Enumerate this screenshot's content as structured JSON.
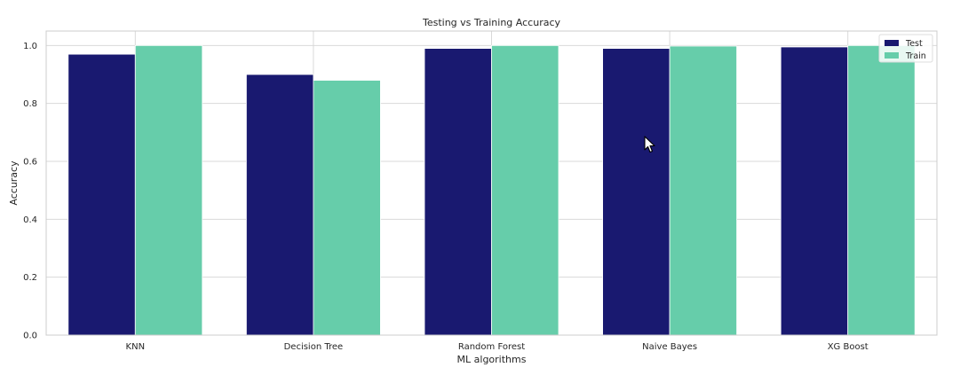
{
  "chart_data": {
    "type": "bar",
    "title": "Testing vs Training Accuracy",
    "xlabel": "ML algorithms",
    "ylabel": "Accuracy",
    "categories": [
      "KNN",
      "Decision Tree",
      "Random Forest",
      "Naive Bayes",
      "XG Boost"
    ],
    "series": [
      {
        "name": "Test",
        "color": "#191970",
        "values": [
          0.97,
          0.9,
          0.99,
          0.99,
          0.995
        ]
      },
      {
        "name": "Train",
        "color": "#66cdaa",
        "values": [
          1.0,
          0.88,
          1.0,
          0.998,
          1.0
        ]
      }
    ],
    "ylim": [
      0,
      1.05
    ],
    "yticks": [
      "0.0",
      "0.2",
      "0.4",
      "0.6",
      "0.8",
      "1.0"
    ],
    "grid": true,
    "legend_position": "top-right"
  },
  "cursor": {
    "icon": "mouse-pointer-icon"
  }
}
